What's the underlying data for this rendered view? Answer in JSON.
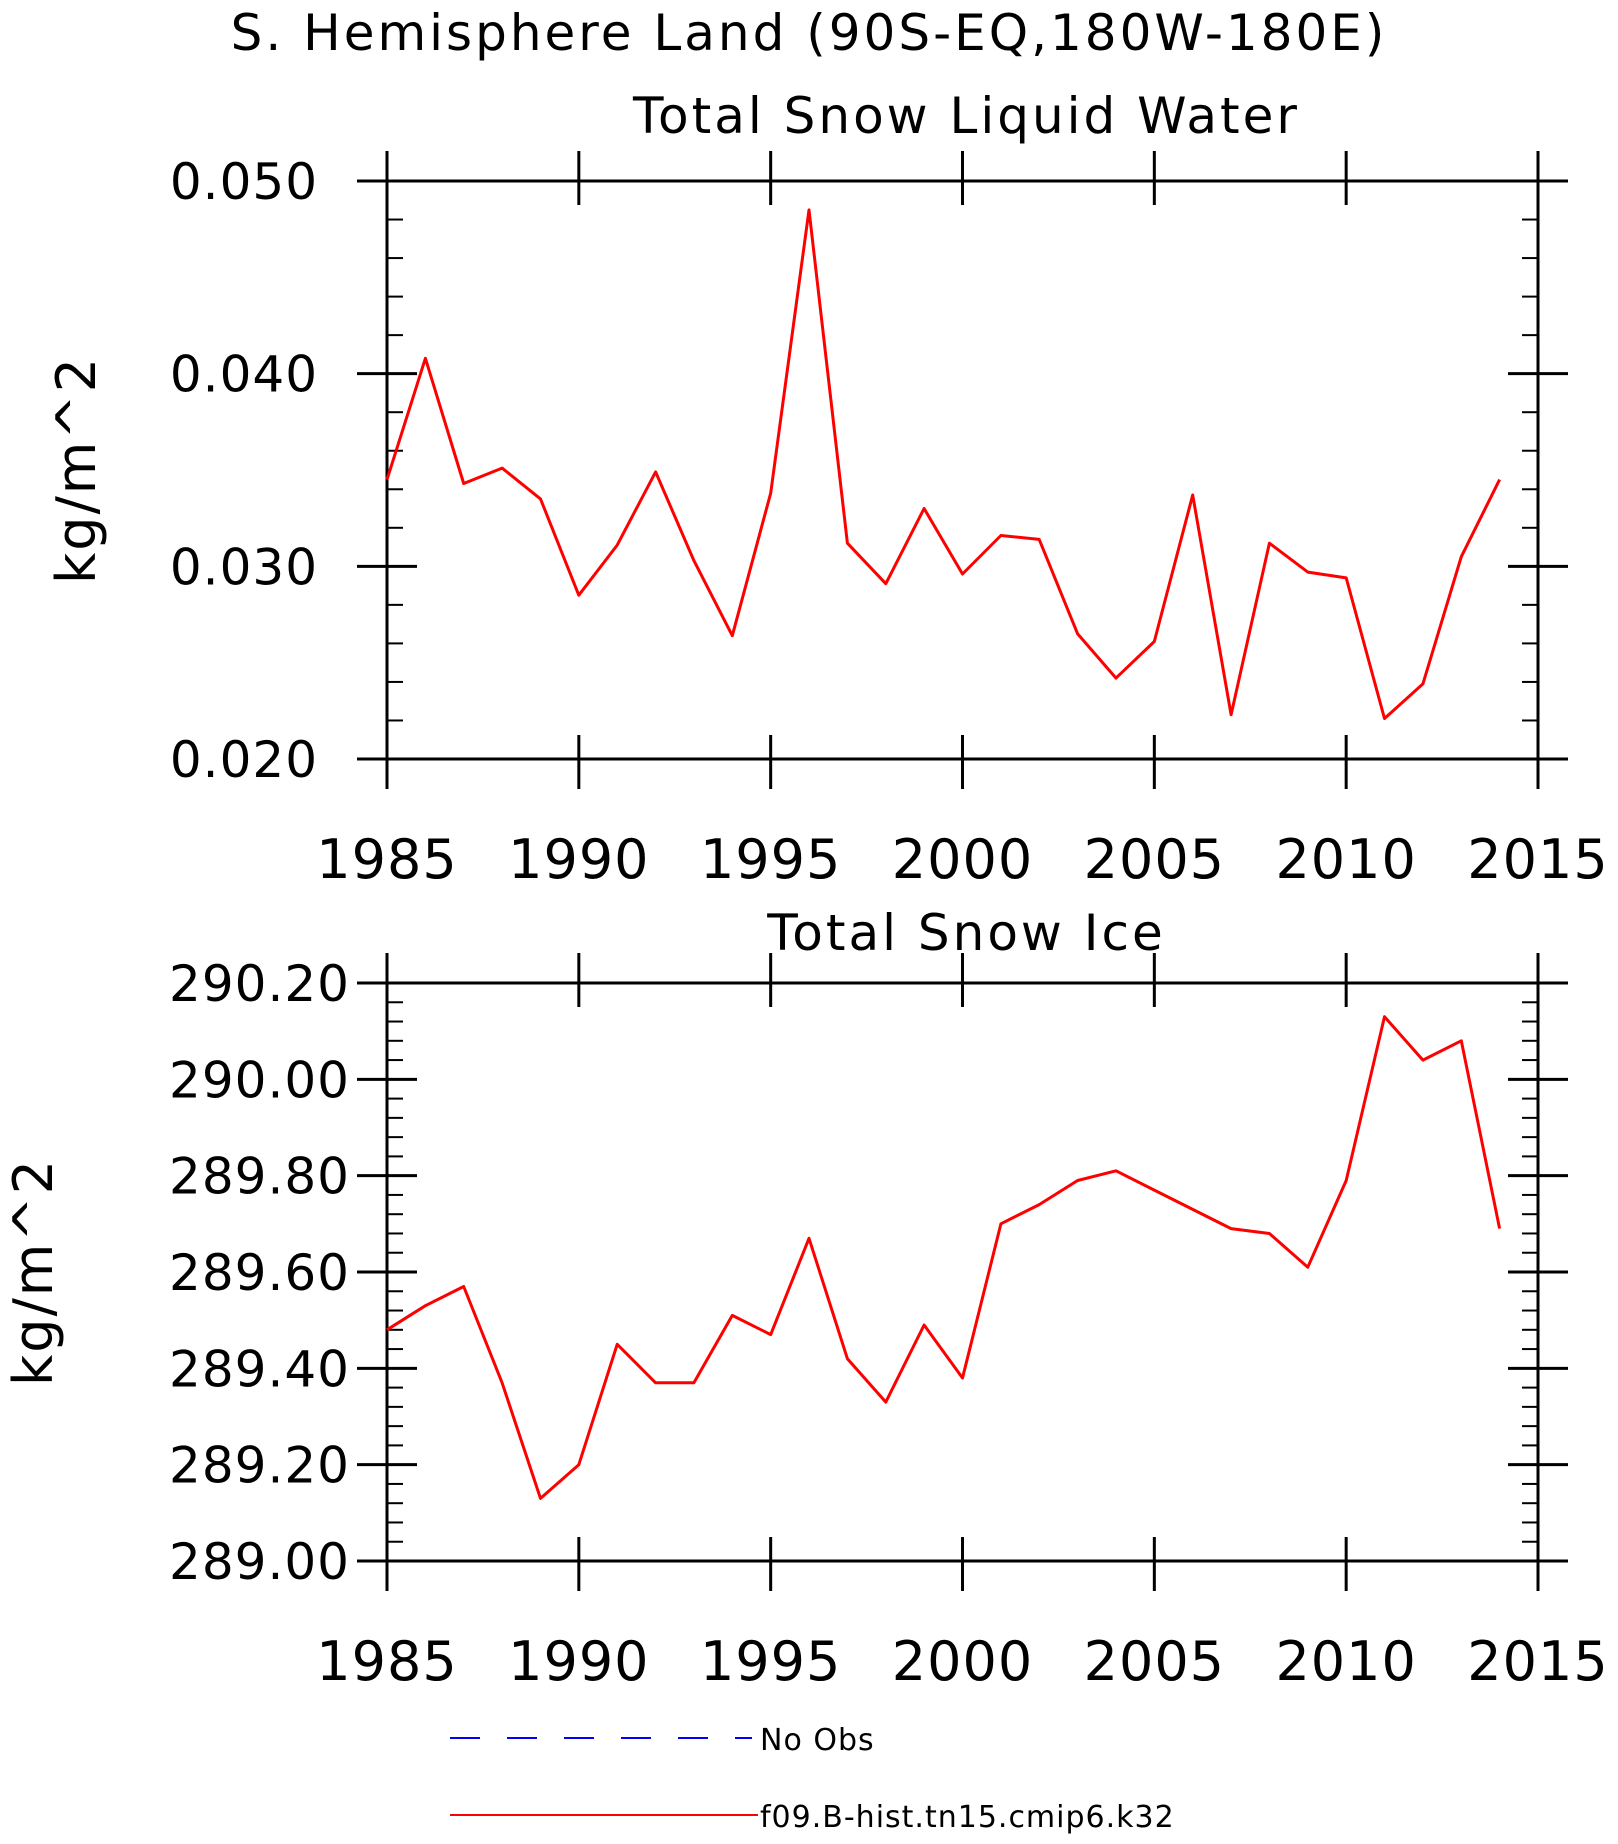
{
  "figure_title": "S. Hemisphere Land (90S-EQ,180W-180E)",
  "chart_data": [
    {
      "type": "line",
      "title": "Total Snow Liquid Water",
      "xlabel": "",
      "ylabel": "kg/m^2",
      "xlim": [
        1985,
        2015
      ],
      "ylim": [
        0.02,
        0.05
      ],
      "xticks": [
        "1985",
        "1990",
        "1995",
        "2000",
        "2005",
        "2010",
        "2015"
      ],
      "yticks": [
        "0.020",
        "0.030",
        "0.040",
        "0.050"
      ],
      "x": [
        1985,
        1986,
        1987,
        1988,
        1989,
        1990,
        1991,
        1992,
        1993,
        1994,
        1995,
        1996,
        1997,
        1998,
        1999,
        2000,
        2001,
        2002,
        2003,
        2004,
        2005,
        2006,
        2007,
        2008,
        2009,
        2010,
        2011,
        2012,
        2013,
        2014
      ],
      "series": [
        {
          "name": "f09.B-hist.tn15.cmip6.k32",
          "color": "#ff0000",
          "values": [
            0.0345,
            0.0408,
            0.0343,
            0.0351,
            0.0335,
            0.0285,
            0.0311,
            0.0349,
            0.0303,
            0.0264,
            0.0338,
            0.0485,
            0.0312,
            0.0291,
            0.033,
            0.0296,
            0.0316,
            0.0314,
            0.0265,
            0.0242,
            0.0261,
            0.0337,
            0.0223,
            0.0312,
            0.0297,
            0.0294,
            0.0221,
            0.0239,
            0.0305,
            0.0345
          ]
        }
      ]
    },
    {
      "type": "line",
      "title": "Total Snow Ice",
      "xlabel": "",
      "ylabel": "kg/m^2",
      "xlim": [
        1985,
        2015
      ],
      "ylim": [
        289.0,
        290.2
      ],
      "xticks": [
        "1985",
        "1990",
        "1995",
        "2000",
        "2005",
        "2010",
        "2015"
      ],
      "yticks": [
        "289.00",
        "289.20",
        "289.40",
        "289.60",
        "289.80",
        "290.00",
        "290.20"
      ],
      "x": [
        1985,
        1986,
        1987,
        1988,
        1989,
        1990,
        1991,
        1992,
        1993,
        1994,
        1995,
        1996,
        1997,
        1998,
        1999,
        2000,
        2001,
        2002,
        2003,
        2004,
        2005,
        2006,
        2007,
        2008,
        2009,
        2010,
        2011,
        2012,
        2013,
        2014
      ],
      "series": [
        {
          "name": "f09.B-hist.tn15.cmip6.k32",
          "color": "#ff0000",
          "values": [
            289.48,
            289.53,
            289.57,
            289.37,
            289.13,
            289.2,
            289.45,
            289.37,
            289.37,
            289.51,
            289.47,
            289.67,
            289.42,
            289.33,
            289.49,
            289.38,
            289.7,
            289.74,
            289.79,
            289.81,
            289.77,
            289.73,
            289.69,
            289.68,
            289.61,
            289.79,
            290.13,
            290.04,
            290.08,
            289.69
          ]
        }
      ]
    }
  ],
  "legend": [
    {
      "label": "No Obs",
      "color": "#0000ff",
      "style": "dashed"
    },
    {
      "label": "f09.B-hist.tn15.cmip6.k32",
      "color": "#ff0000",
      "style": "solid"
    }
  ]
}
